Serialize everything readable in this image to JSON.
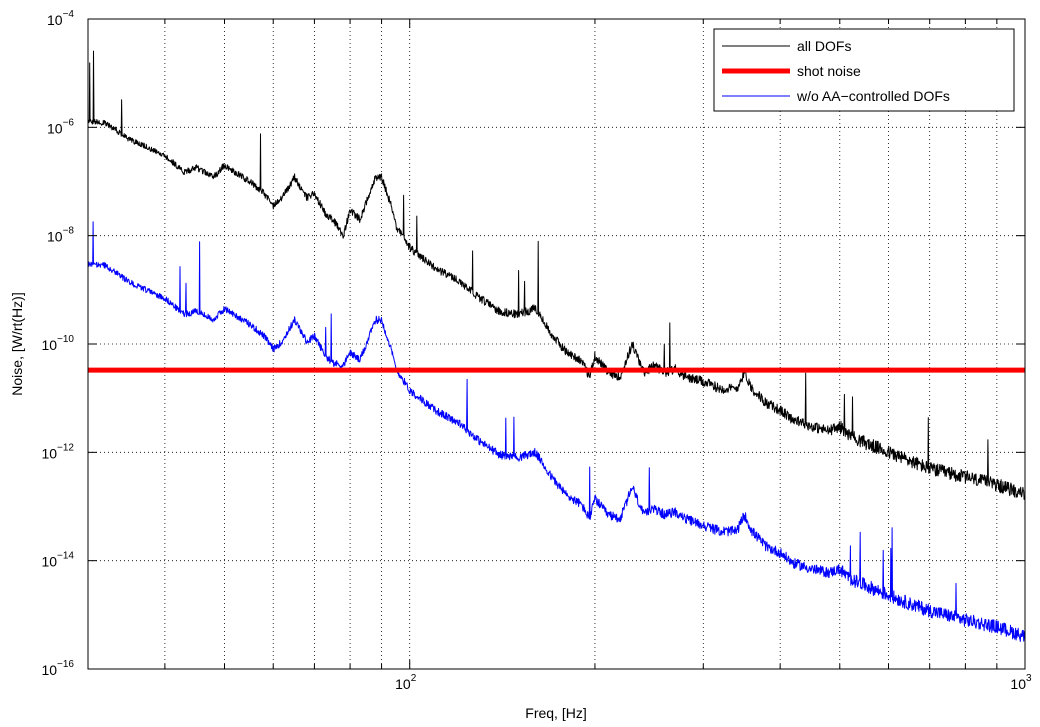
{
  "chart_data": {
    "type": "line",
    "title": "",
    "xlabel": "Freq, [Hz]",
    "ylabel": "Noise, [W/rt(Hz)]",
    "xscale": "log",
    "yscale": "log",
    "xlim": [
      30,
      1000
    ],
    "ylim": [
      1e-16,
      0.0001
    ],
    "grid": true,
    "legend_position": "top-right",
    "x_ticks": [
      {
        "value": 100,
        "base": "10",
        "exp": "2"
      },
      {
        "value": 1000,
        "base": "10",
        "exp": "3"
      }
    ],
    "y_ticks": [
      {
        "value": 1e-16,
        "base": "10",
        "exp": "−16"
      },
      {
        "value": 1e-14,
        "base": "10",
        "exp": "−14"
      },
      {
        "value": 1e-12,
        "base": "10",
        "exp": "−12"
      },
      {
        "value": 1e-10,
        "base": "10",
        "exp": "−10"
      },
      {
        "value": 1e-08,
        "base": "10",
        "exp": "−8"
      },
      {
        "value": 1e-06,
        "base": "10",
        "exp": "−6"
      },
      {
        "value": 0.0001,
        "base": "10",
        "exp": "−4"
      }
    ],
    "series": [
      {
        "name": "all DOFs",
        "color": "#000000",
        "x": [
          30,
          32,
          35,
          38,
          40,
          43,
          45,
          48,
          50,
          53,
          55,
          58,
          60,
          62,
          65,
          68,
          70,
          73,
          75,
          78,
          80,
          83,
          86,
          88,
          90,
          93,
          95,
          100,
          110,
          120,
          130,
          140,
          150,
          160,
          170,
          180,
          190,
          196,
          200,
          210,
          220,
          230,
          240,
          250,
          260,
          270,
          280,
          300,
          320,
          340,
          350,
          360,
          380,
          400,
          420,
          450,
          480,
          500,
          520,
          550,
          600,
          650,
          700,
          800,
          900,
          1000
        ],
        "y": [
          1.3e-06,
          1.2e-06,
          6e-07,
          4e-07,
          3e-07,
          1.5e-07,
          1.8e-07,
          1.2e-07,
          2e-07,
          1.3e-07,
          1e-07,
          6e-08,
          3.5e-08,
          5e-08,
          1.2e-07,
          5e-08,
          6e-08,
          2.5e-08,
          2e-08,
          1e-08,
          3e-08,
          2e-08,
          6e-08,
          1.2e-07,
          1.2e-07,
          4e-08,
          1.5e-08,
          6e-09,
          2.5e-09,
          1.5e-09,
          7e-10,
          4e-10,
          3.5e-10,
          4.5e-10,
          1.5e-10,
          7e-11,
          5e-11,
          2.5e-11,
          6e-11,
          3e-11,
          2.5e-11,
          1e-10,
          3e-11,
          4e-11,
          3e-11,
          3.5e-11,
          2.5e-11,
          2e-11,
          1.5e-11,
          1.5e-11,
          3e-11,
          1.5e-11,
          8e-12,
          6e-12,
          4e-12,
          3e-12,
          2.5e-12,
          3e-12,
          2e-12,
          1.5e-12,
          1e-12,
          7e-13,
          5e-13,
          3.5e-13,
          2.5e-13,
          1.7e-13
        ]
      },
      {
        "name": "shot noise",
        "color": "#ff0000",
        "x": [
          30,
          1000
        ],
        "y": [
          3.3e-11,
          3.3e-11
        ]
      },
      {
        "name": "w/o AA−controlled DOFs",
        "color": "#0000ff",
        "x": [
          30,
          32,
          35,
          38,
          40,
          43,
          45,
          48,
          50,
          53,
          55,
          58,
          60,
          62,
          65,
          68,
          70,
          73,
          75,
          78,
          80,
          83,
          86,
          88,
          90,
          93,
          95,
          100,
          110,
          120,
          130,
          140,
          150,
          160,
          170,
          180,
          190,
          196,
          200,
          210,
          220,
          230,
          240,
          250,
          260,
          270,
          280,
          300,
          320,
          340,
          350,
          360,
          380,
          400,
          420,
          450,
          480,
          500,
          520,
          550,
          600,
          650,
          700,
          800,
          900,
          1000
        ],
        "y": [
          3e-09,
          2.8e-09,
          1.4e-09,
          9e-10,
          7e-10,
          3.5e-10,
          4e-10,
          2.8e-10,
          4.5e-10,
          3e-10,
          2.3e-10,
          1.4e-10,
          8e-11,
          1.1e-10,
          2.8e-10,
          1.1e-10,
          1.4e-10,
          6e-11,
          4.5e-11,
          4e-11,
          7e-11,
          5e-11,
          1.4e-10,
          2.8e-10,
          2.8e-10,
          9e-11,
          3.5e-11,
          1.4e-11,
          6e-12,
          3.5e-12,
          1.6e-12,
          9e-13,
          8e-13,
          1e-12,
          3.5e-13,
          1.6e-13,
          1.1e-13,
          6e-14,
          1.4e-13,
          7e-14,
          6e-14,
          2.3e-13,
          7e-14,
          9e-14,
          7e-14,
          8e-14,
          6e-14,
          4.5e-14,
          3.5e-14,
          3.5e-14,
          7e-14,
          3.5e-14,
          1.8e-14,
          1.4e-14,
          9e-15,
          7e-15,
          6e-15,
          7e-15,
          4.5e-15,
          3.5e-15,
          2.3e-15,
          1.6e-15,
          1.2e-15,
          8e-16,
          6e-16,
          4e-16
        ]
      }
    ]
  }
}
